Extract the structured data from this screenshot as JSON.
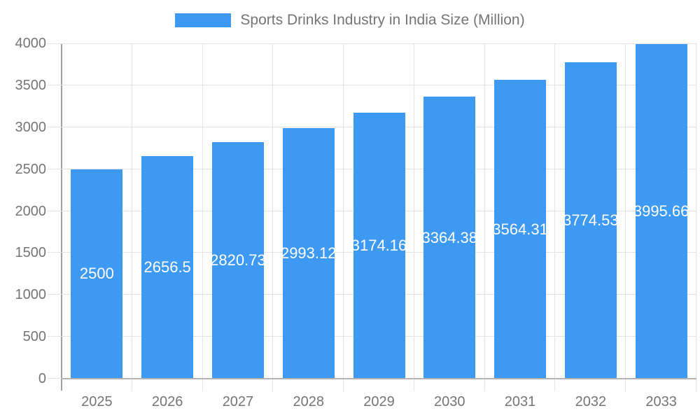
{
  "chart_data": {
    "type": "bar",
    "title": "Sports Drinks Industry in India Size (Million)",
    "legend": {
      "label": "Sports Drinks Industry in India Size (Million)",
      "position": "top"
    },
    "categories": [
      "2025",
      "2026",
      "2027",
      "2028",
      "2029",
      "2030",
      "2031",
      "2032",
      "2033"
    ],
    "series": [
      {
        "name": "Sports Drinks Industry in India Size (Million)",
        "values": [
          2500,
          2656.5,
          2820.73,
          2993.12,
          3174.16,
          3364.38,
          3564.31,
          3774.53,
          3995.66
        ]
      }
    ],
    "value_labels": [
      "2500",
      "2656.5",
      "2820.73",
      "2993.12",
      "3174.16",
      "3364.38",
      "3564.31",
      "3774.53",
      "3995.66"
    ],
    "xlabel": "",
    "ylabel": "",
    "ylim": [
      0,
      4000
    ],
    "y_ticks": [
      0,
      500,
      1000,
      1500,
      2000,
      2500,
      3000,
      3500,
      4000
    ],
    "grid": true,
    "colors": {
      "bar": "#3d99f1",
      "bar_label_text": "#ffffff",
      "axis_text": "#757575",
      "legend_text": "#757575",
      "gridline": "#e3e3e3",
      "axis_line": "#9e9e9e",
      "baseline": "#b3b3b3",
      "background": "#ffffff"
    }
  }
}
